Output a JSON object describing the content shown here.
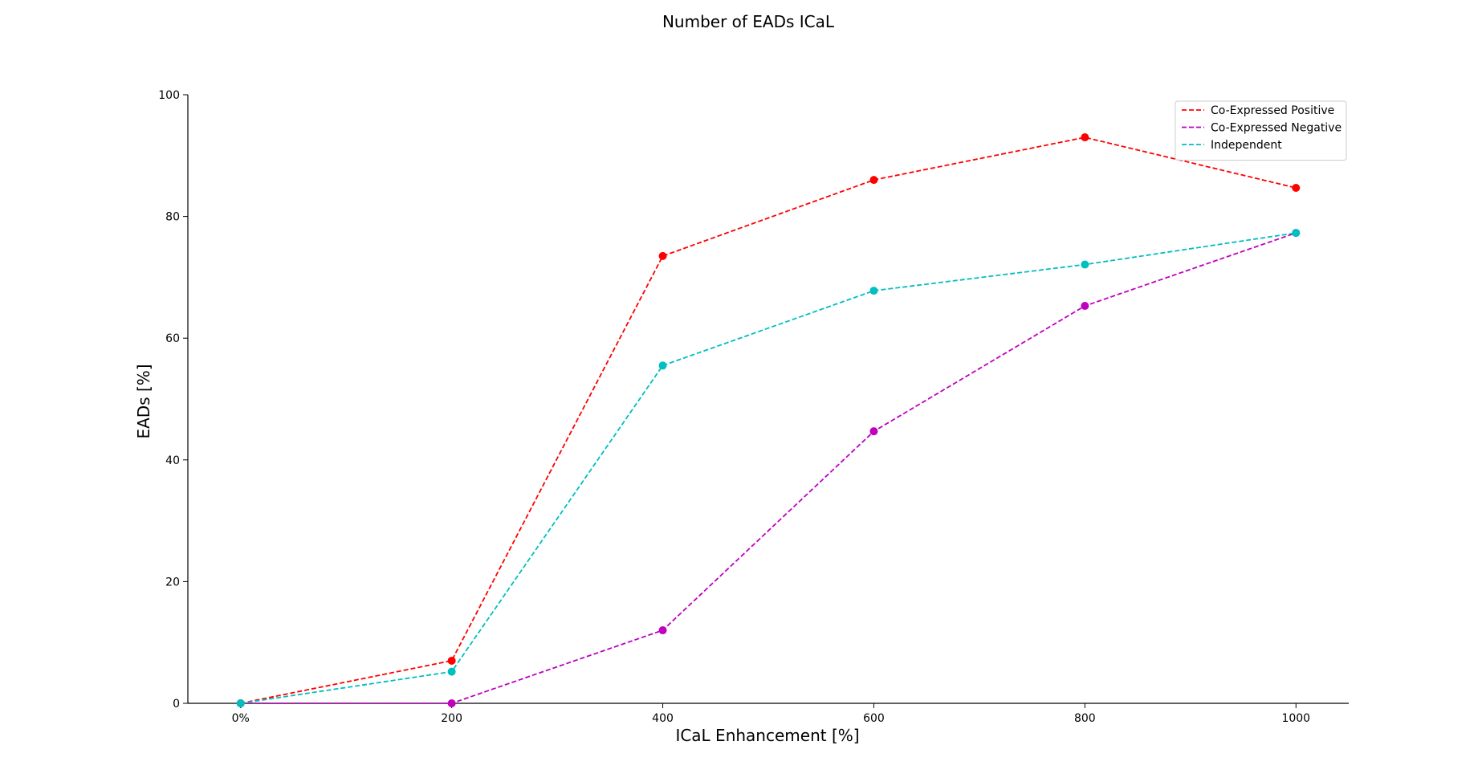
{
  "chart_data": {
    "type": "line",
    "title": "Number of EADs ICaL",
    "xlabel": "ICaL Enhancement [%]",
    "ylabel": "EADs [%]",
    "x": [
      0,
      200,
      400,
      600,
      800,
      1000
    ],
    "x_tick_labels": [
      "0%",
      "200",
      "400",
      "600",
      "800",
      "1000"
    ],
    "y_ticks": [
      0,
      20,
      40,
      60,
      80,
      100
    ],
    "xlim": [
      -50,
      1050
    ],
    "ylim": [
      0,
      100
    ],
    "grid": false,
    "legend_position": "top-right",
    "line_style": "dashed",
    "marker": "circle",
    "series": [
      {
        "name": "Co-Expressed Positive",
        "color": "#ff0000",
        "values": [
          0,
          7,
          73.5,
          86,
          93,
          84.7
        ]
      },
      {
        "name": "Co-Expressed Negative",
        "color": "#bf00bf",
        "values": [
          0,
          0,
          12,
          44.7,
          65.3,
          77.3
        ]
      },
      {
        "name": "Independent",
        "color": "#00bfbf",
        "values": [
          0,
          5.2,
          55.5,
          67.8,
          72.1,
          77.3
        ]
      }
    ]
  }
}
